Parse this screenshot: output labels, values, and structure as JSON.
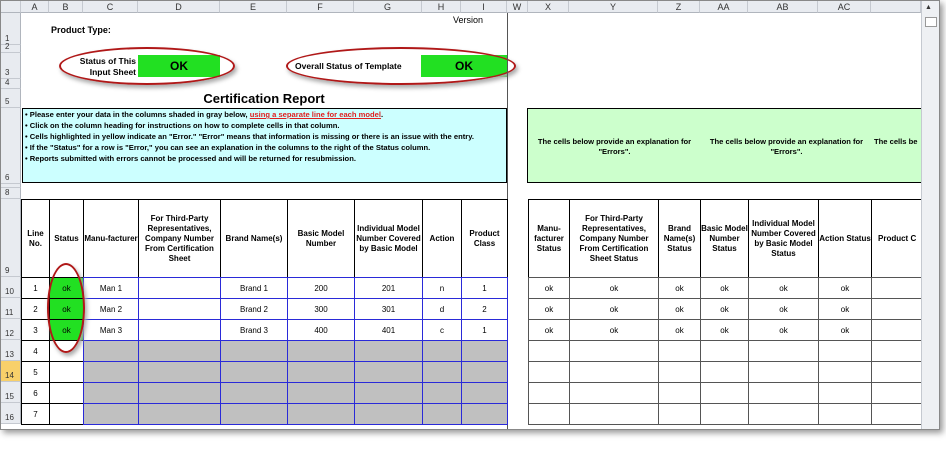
{
  "columns_left": [
    "A",
    "B",
    "C",
    "D",
    "E",
    "F",
    "G",
    "H",
    "I"
  ],
  "columns_right": [
    "W",
    "X",
    "Y",
    "Z",
    "AA",
    "AB",
    "AC"
  ],
  "rows": [
    "1",
    "2",
    "3",
    "4",
    "5",
    "6",
    "8",
    "9",
    "10",
    "11",
    "12",
    "13",
    "14",
    "15",
    "16"
  ],
  "selected_row": "14",
  "top": {
    "product_type_label": "Product Type:",
    "version_label": "Version",
    "status_input_label": "Status of This Input Sheet",
    "status_input_value": "OK",
    "overall_label": "Overall Status of Template",
    "overall_value": "OK",
    "title": "Certification Report"
  },
  "instructions": {
    "line1": "• Please enter your data in the columns shaded in gray below, ",
    "line1_link": "using a separate line for each model",
    "line2": "• Click on the column heading for instructions on how to complete cells in that column.",
    "line3": "• Cells highlighted in yellow indicate an \"Error.\"  \"Error\" means that information is missing or there is an issue with the entry.",
    "line4": "• If the \"Status\" for a row is \"Error,\" you can see an explanation in the columns to the right of the Status column.",
    "line5": "• Reports submitted with errors cannot be processed and will be returned for resubmission."
  },
  "explanation": {
    "text1": "The cells below provide an explanation for \"Errors\".",
    "text2": "The cells below provide an explanation for \"Errors\".",
    "text3": "The cells be"
  },
  "left_headers": [
    "Line No.",
    "Status",
    "Manu-facturer",
    "For Third-Party Representatives, Company Number From Certification Sheet",
    "Brand Name(s)",
    "Basic Model Number",
    "Individual Model Number Covered by Basic Model",
    "Action",
    "Product Class"
  ],
  "right_headers": [
    "Manu-facturer Status",
    "For Third-Party Representatives, Company Number From Certification Sheet Status",
    "Brand Name(s) Status",
    "Basic Model Number Status",
    "Individual Model Number Covered by Basic Model Status",
    "Action Status",
    "Product C"
  ],
  "data_rows": [
    [
      "1",
      "ok",
      "Man 1",
      "",
      "Brand 1",
      "200",
      "201",
      "n",
      "1"
    ],
    [
      "2",
      "ok",
      "Man 2",
      "",
      "Brand 2",
      "300",
      "301",
      "d",
      "2"
    ],
    [
      "3",
      "ok",
      "Man 3",
      "",
      "Brand 3",
      "400",
      "401",
      "c",
      "1"
    ],
    [
      "4",
      "",
      "",
      "",
      "",
      "",
      "",
      "",
      ""
    ],
    [
      "5",
      "",
      "",
      "",
      "",
      "",
      "",
      "",
      ""
    ],
    [
      "6",
      "",
      "",
      "",
      "",
      "",
      "",
      "",
      ""
    ],
    [
      "7",
      "",
      "",
      "",
      "",
      "",
      "",
      "",
      ""
    ]
  ],
  "status_rows": [
    [
      "ok",
      "ok",
      "ok",
      "ok",
      "ok",
      "ok",
      ""
    ],
    [
      "ok",
      "ok",
      "ok",
      "ok",
      "ok",
      "ok",
      ""
    ],
    [
      "ok",
      "ok",
      "ok",
      "ok",
      "ok",
      "ok",
      ""
    ]
  ],
  "colors": {
    "ok_green": "#22e022",
    "instructions_bg": "#ccffff",
    "explanation_bg": "#ccffcc",
    "input_gray": "#c0c0c0",
    "grid_blue": "#2a2ad8",
    "highlight_oval": "#b01818"
  }
}
